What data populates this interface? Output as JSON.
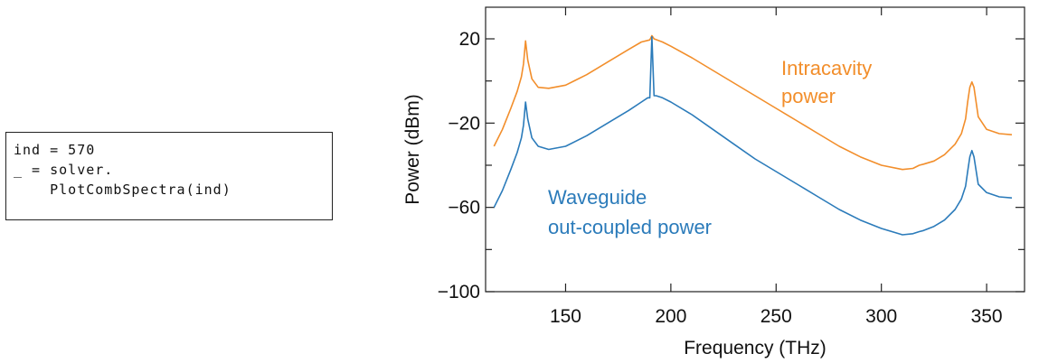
{
  "code": {
    "lines": [
      "ind = 570",
      "_ = solver.",
      "    PlotCombSpectra(ind)"
    ]
  },
  "colors": {
    "intracavity": "#f28e2b",
    "waveguide": "#2b7bba",
    "axis": "#222222"
  },
  "chart_data": {
    "type": "line",
    "title": "",
    "xlabel": "Frequency (THz)",
    "ylabel": "Power (dBm)",
    "xlim": [
      112,
      368
    ],
    "ylim": [
      -100,
      35
    ],
    "xticks": [
      150,
      200,
      250,
      300,
      350
    ],
    "xtick_labels": [
      "150",
      "200",
      "250",
      "300",
      "350"
    ],
    "yticks": [
      20,
      -20,
      -60,
      -100
    ],
    "ytick_labels": [
      "20",
      "−20",
      "−60",
      "−100"
    ],
    "grid": false,
    "series": [
      {
        "key": "intracavity",
        "annotation": [
          "Intracavity",
          "power"
        ],
        "x": [
          116,
          120,
          124,
          127,
          129,
          130,
          131,
          132,
          134,
          137,
          142,
          150,
          160,
          170,
          180,
          186,
          190,
          191,
          192,
          196,
          200,
          210,
          220,
          230,
          240,
          250,
          260,
          270,
          280,
          290,
          300,
          310,
          315,
          318,
          320,
          325,
          330,
          335,
          338,
          340,
          341,
          342,
          343,
          344,
          346,
          350,
          356,
          362
        ],
        "y": [
          -31,
          -23,
          -13,
          -5,
          2,
          8,
          19,
          10,
          1,
          -3,
          -3.5,
          -2,
          3,
          9,
          15,
          18.5,
          19.5,
          21.5,
          20,
          18.5,
          16.5,
          11,
          5,
          -1,
          -7,
          -13,
          -19,
          -25,
          -31,
          -36,
          -40,
          -42,
          -41.5,
          -40,
          -39.5,
          -38,
          -35,
          -30,
          -25,
          -18,
          -10,
          -3,
          -0.5,
          -3,
          -17,
          -23,
          -25,
          -25.5
        ]
      },
      {
        "key": "waveguide",
        "annotation": [
          "Waveguide",
          "out-coupled power"
        ],
        "x": [
          116,
          120,
          124,
          127,
          129,
          130,
          131,
          132,
          134,
          137,
          142,
          150,
          160,
          170,
          180,
          186,
          189,
          190,
          191,
          192,
          193,
          196,
          200,
          210,
          220,
          230,
          240,
          250,
          260,
          270,
          280,
          290,
          300,
          310,
          315,
          318,
          320,
          325,
          330,
          335,
          338,
          340,
          341,
          342,
          343,
          344,
          346,
          350,
          356,
          362
        ],
        "y": [
          -60,
          -52,
          -42,
          -34,
          -27,
          -21,
          -10,
          -18,
          -27,
          -31,
          -32.5,
          -31,
          -26,
          -20,
          -14,
          -10,
          -8,
          -8,
          21,
          -7,
          -7,
          -8,
          -10,
          -16,
          -23,
          -30,
          -37,
          -43,
          -49,
          -55,
          -61,
          -66,
          -70,
          -73,
          -72.5,
          -71.5,
          -71,
          -69,
          -66,
          -61,
          -56,
          -50,
          -43,
          -36,
          -33,
          -36,
          -49,
          -53,
          -55,
          -55.5
        ]
      }
    ]
  }
}
